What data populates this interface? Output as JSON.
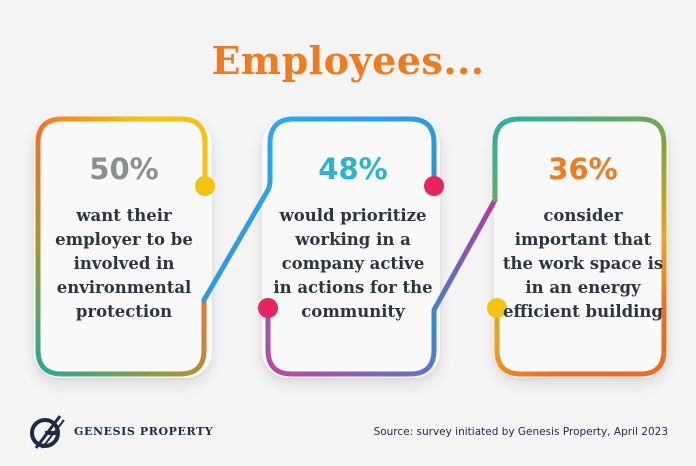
{
  "title": "Employees...",
  "cards": [
    {
      "percent": "50%",
      "text": "want their employer to be involved in environmental protection",
      "lines": [
        "want their",
        "employer to be",
        "involved in",
        "environmental",
        "protection"
      ],
      "accent": "#8a9090"
    },
    {
      "percent": "48%",
      "text": "would prioritize working in a company active in actions for the community",
      "lines": [
        "would prioritize",
        "working in a",
        "company active",
        "in actions for the",
        "community"
      ],
      "accent": "#2bb4d2"
    },
    {
      "percent": "36%",
      "text": "consider important that the work space is in an energy efficient building",
      "lines": [
        "consider",
        "important that",
        "the work space is",
        "in an energy",
        "efficient building"
      ],
      "accent": "#f07a1e"
    }
  ],
  "logo": {
    "text": "GENESIS PROPERTY"
  },
  "source": "Source: survey initiated by Genesis Property, April 2023",
  "colors": {
    "title": "#f07a1e",
    "text": "#2e3540",
    "dot_yellow": "#f2c410",
    "dot_pink": "#e5265e",
    "navy": "#1f2a44"
  }
}
